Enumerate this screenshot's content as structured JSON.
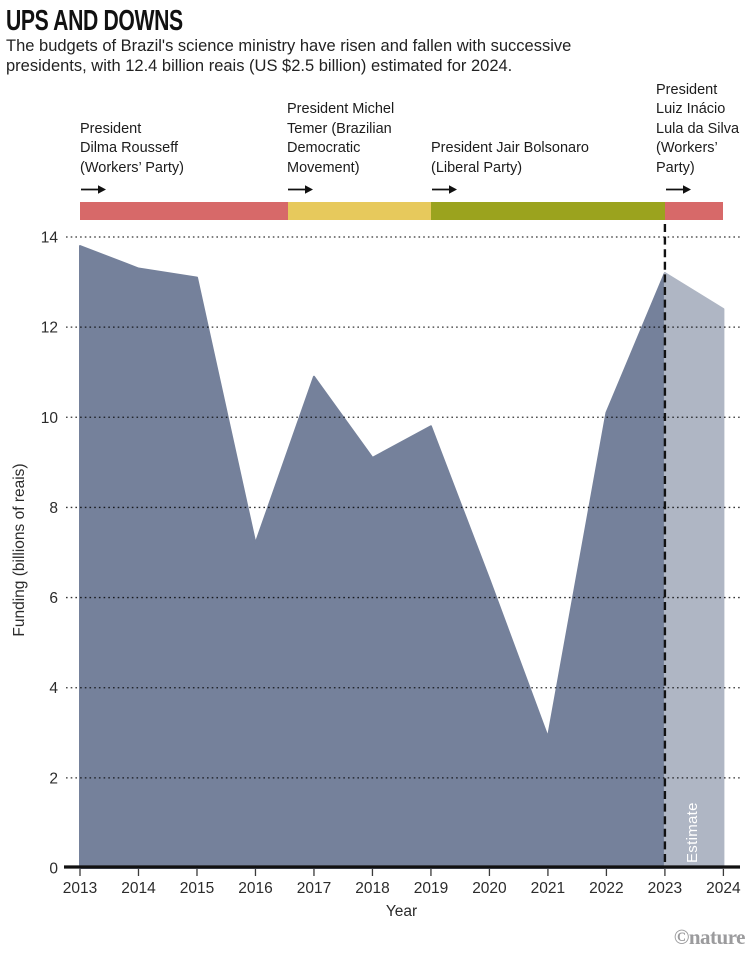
{
  "header": {
    "title": "UPS AND DOWNS",
    "subtitle": "The budgets of Brazil's science ministry have risen and fallen with successive\npresidents, with 12.4 billion reais (US $2.5 billion) estimated for 2024."
  },
  "presidents": [
    {
      "label": "President\nDilma Rousseff\n(Workers’ Party)",
      "party_color": "#D76969",
      "start": 2013,
      "end": 2016.55
    },
    {
      "label": "President Michel\nTemer (Brazilian\nDemocratic\nMovement)",
      "party_color": "#E7C95C",
      "start": 2016.55,
      "end": 2019
    },
    {
      "label": "President Jair Bolsonaro\n(Liberal Party)",
      "party_color": "#9BA31E",
      "start": 2019,
      "end": 2023
    },
    {
      "label": "President\nLuiz Inácio\nLula da Silva\n(Workers’\nParty)",
      "party_color": "#D76969",
      "start": 2023,
      "end": 2024
    }
  ],
  "chart_data": {
    "type": "area",
    "x": [
      2013,
      2014,
      2015,
      2016,
      2017,
      2018,
      2019,
      2020,
      2021,
      2022,
      2023,
      2024
    ],
    "values": [
      13.8,
      13.3,
      13.1,
      7.2,
      10.9,
      9.1,
      9.8,
      6.4,
      2.9,
      10.1,
      13.2,
      12.4
    ],
    "title": "UPS AND DOWNS",
    "xlabel": "Year",
    "ylabel": "Funding (billions of reais)",
    "ylim": [
      0,
      14
    ],
    "yticks": [
      0,
      2,
      4,
      6,
      8,
      10,
      12,
      14
    ],
    "grid": "horizontal-dotted",
    "area_color": "#75819B",
    "estimate_area_color": "#AFB6C4",
    "estimate_from_x": 2023,
    "estimate_label": "Estimate",
    "dashed_line_x": 2023
  },
  "footer": {
    "credit": "©nature"
  }
}
